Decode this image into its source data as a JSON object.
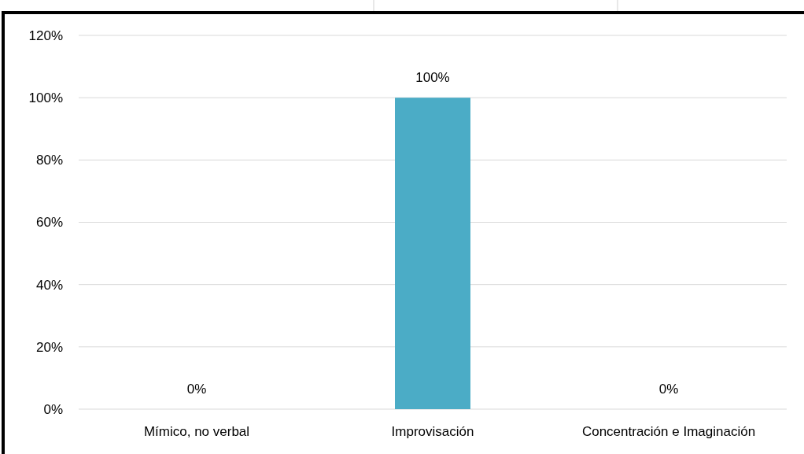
{
  "chart_data": {
    "type": "bar",
    "categories": [
      "Mímico, no verbal",
      "Improvisación",
      "Concentración e Imaginación"
    ],
    "values": [
      0,
      100,
      0
    ],
    "color": "#4bacc6",
    "value_labels": [
      "0%",
      "100%",
      "0%"
    ],
    "ylim": [
      0,
      120
    ],
    "yticks": [
      {
        "value": 0,
        "label": "0%"
      },
      {
        "value": 20,
        "label": "20%"
      },
      {
        "value": 40,
        "label": "40%"
      },
      {
        "value": 60,
        "label": "60%"
      },
      {
        "value": 80,
        "label": "80%"
      },
      {
        "value": 100,
        "label": "100%"
      },
      {
        "value": 120,
        "label": "120%"
      }
    ],
    "grid": "y"
  }
}
